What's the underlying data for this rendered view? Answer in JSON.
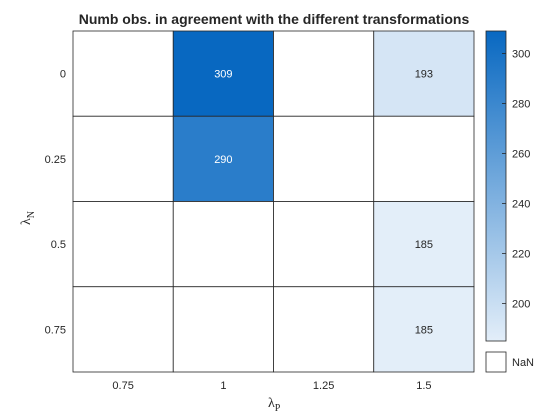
{
  "chart_data": {
    "type": "heatmap",
    "title": "Numb obs. in agreement with the different transformations",
    "xlabel": {
      "base": "λ",
      "sub": "P"
    },
    "ylabel": {
      "base": "λ",
      "sub": "N"
    },
    "x_categories": [
      "0.75",
      "1",
      "1.25",
      "1.5"
    ],
    "y_categories": [
      "0",
      "0.25",
      "0.5",
      "0.75"
    ],
    "values": [
      [
        null,
        309,
        null,
        193
      ],
      [
        null,
        290,
        null,
        null
      ],
      [
        null,
        null,
        null,
        185
      ],
      [
        null,
        null,
        null,
        185
      ]
    ],
    "colorbar": {
      "min": 185,
      "max": 309,
      "ticks": [
        "200",
        "220",
        "240",
        "260",
        "280",
        "300"
      ],
      "color_low": "#e3eef9",
      "color_high": "#0868c1"
    },
    "nan_legend": "NaN",
    "missing_color": "#ffffff"
  }
}
